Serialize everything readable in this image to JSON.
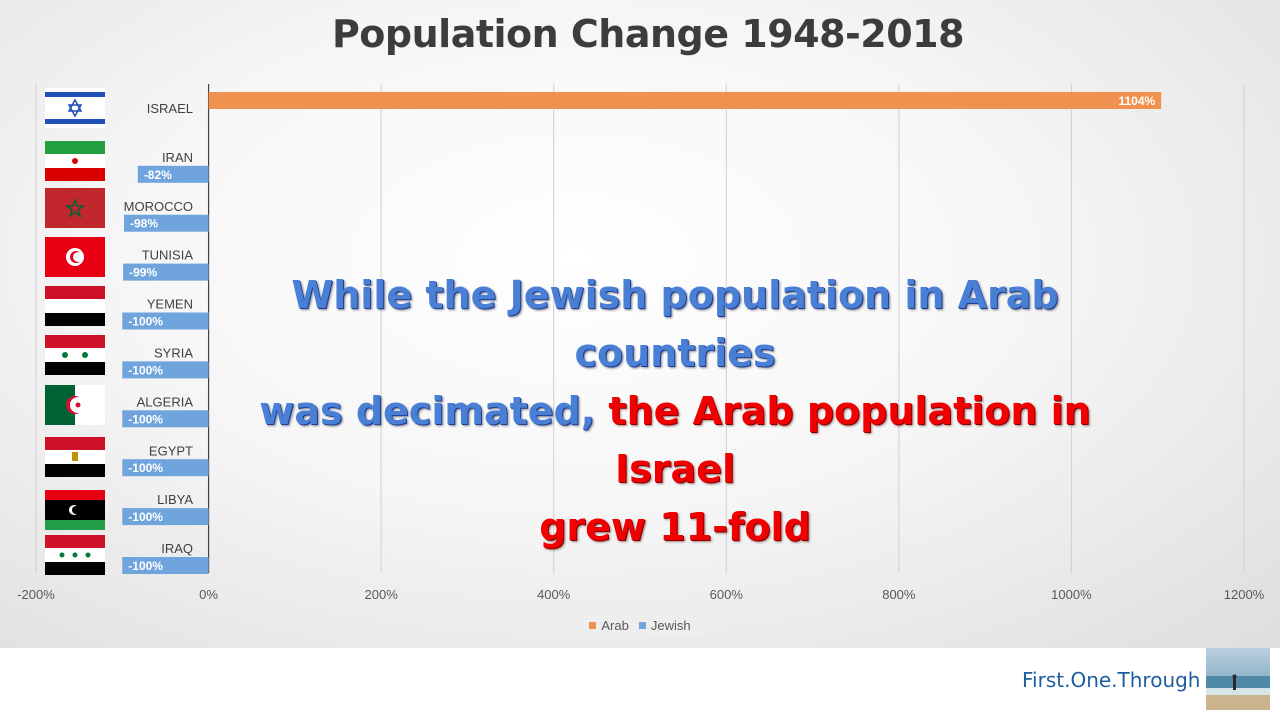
{
  "chart_data": {
    "type": "bar",
    "orientation": "horizontal",
    "title": "Population Change 1948-2018",
    "categories": [
      "ISRAEL",
      "IRAN",
      "MOROCCO",
      "TUNISIA",
      "YEMEN",
      "SYRIA",
      "ALGERIA",
      "EGYPT",
      "LIBYA",
      "IRAQ"
    ],
    "series": [
      {
        "name": "Arab",
        "color": "#f0914f",
        "values": [
          1104,
          null,
          null,
          null,
          null,
          null,
          null,
          null,
          null,
          null
        ]
      },
      {
        "name": "Jewish",
        "color": "#6fa4dc",
        "values": [
          null,
          -82,
          -98,
          -99,
          -100,
          -100,
          -100,
          -100,
          -100,
          -100
        ]
      }
    ],
    "data_labels": [
      "1104%",
      "-82%",
      "-98%",
      "-99%",
      "-100%",
      "-100%",
      "-100%",
      "-100%",
      "-100%",
      "-100%"
    ],
    "xlim": [
      -200,
      1200
    ],
    "x_ticks": [
      -200,
      0,
      200,
      400,
      600,
      800,
      1000,
      1200
    ],
    "x_tick_labels": [
      "-200%",
      "0%",
      "200%",
      "400%",
      "600%",
      "800%",
      "1000%",
      "1200%"
    ],
    "grid": "vertical",
    "legend": "bottom"
  },
  "overlay": {
    "line1": "While the Jewish population in Arab countries",
    "line2_blue": "was decimated, ",
    "line2_red": "the Arab population in Israel",
    "line3_red": "grew 11-fold"
  },
  "footer": {
    "brand": "First.One.Through"
  },
  "flag_icons": [
    "israel-flag-icon",
    "iran-flag-icon",
    "morocco-flag-icon",
    "tunisia-flag-icon",
    "yemen-flag-icon",
    "syria-flag-icon",
    "algeria-flag-icon",
    "egypt-flag-icon",
    "libya-flag-icon",
    "iraq-flag-icon"
  ]
}
